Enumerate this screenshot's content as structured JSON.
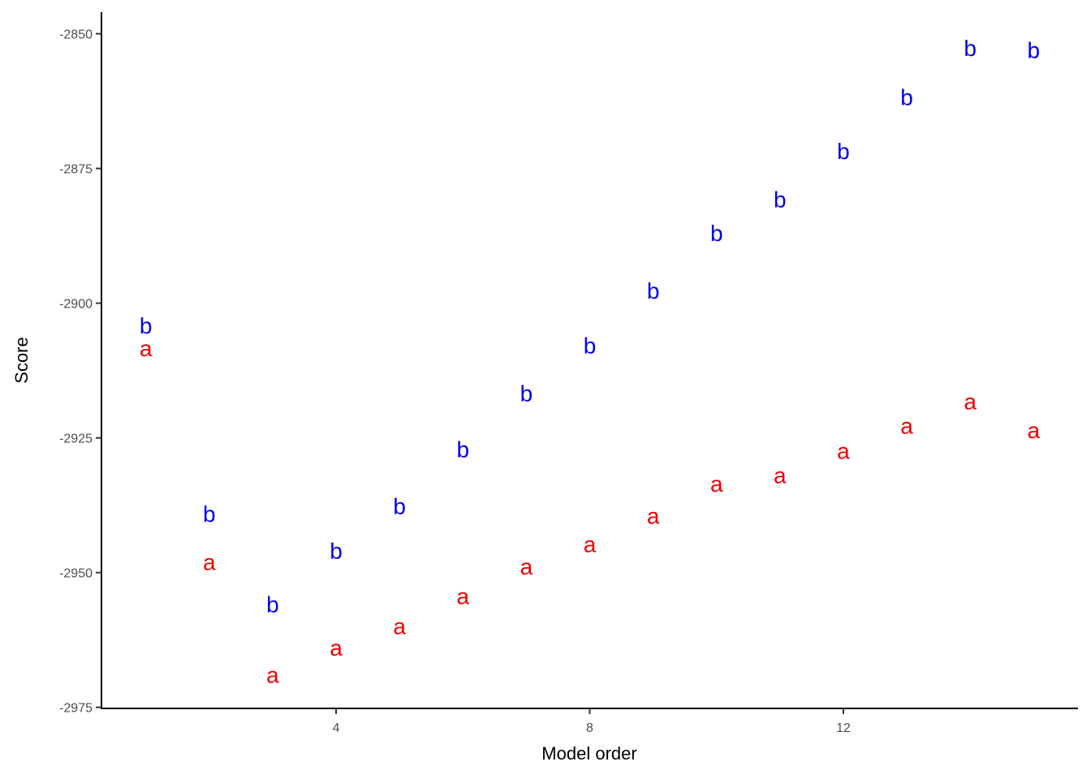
{
  "chart_data": {
    "type": "scatter",
    "xlabel": "Model order",
    "ylabel": "Score",
    "xlim": [
      0.3,
      15.7
    ],
    "ylim": [
      -2975.2,
      -2846
    ],
    "x_ticks": [
      4,
      8,
      12
    ],
    "y_ticks": [
      -2850,
      -2875,
      -2900,
      -2925,
      -2950,
      -2975
    ],
    "series": [
      {
        "name": "a",
        "marker": "a",
        "color": "#ee0000",
        "x": [
          1,
          2,
          3,
          4,
          5,
          6,
          7,
          8,
          9,
          10,
          11,
          12,
          13,
          14,
          15
        ],
        "y": [
          -2908.4,
          -2948.1,
          -2969,
          -2964,
          -2960,
          -2954.4,
          -2948.9,
          -2944.8,
          -2939.5,
          -2933.6,
          -2932,
          -2927.5,
          -2922.8,
          -2918.3,
          -2923.6
        ]
      },
      {
        "name": "b",
        "marker": "b",
        "color": "#0000ee",
        "x": [
          1,
          2,
          3,
          4,
          5,
          6,
          7,
          8,
          9,
          10,
          11,
          12,
          13,
          14,
          15
        ],
        "y": [
          -2904.2,
          -2939.1,
          -2955.9,
          -2946,
          -2937.7,
          -2927.2,
          -2916.8,
          -2907.9,
          -2897.7,
          -2887,
          -2880.8,
          -2871.8,
          -2861.8,
          -2852.7,
          -2853.1
        ]
      }
    ]
  }
}
